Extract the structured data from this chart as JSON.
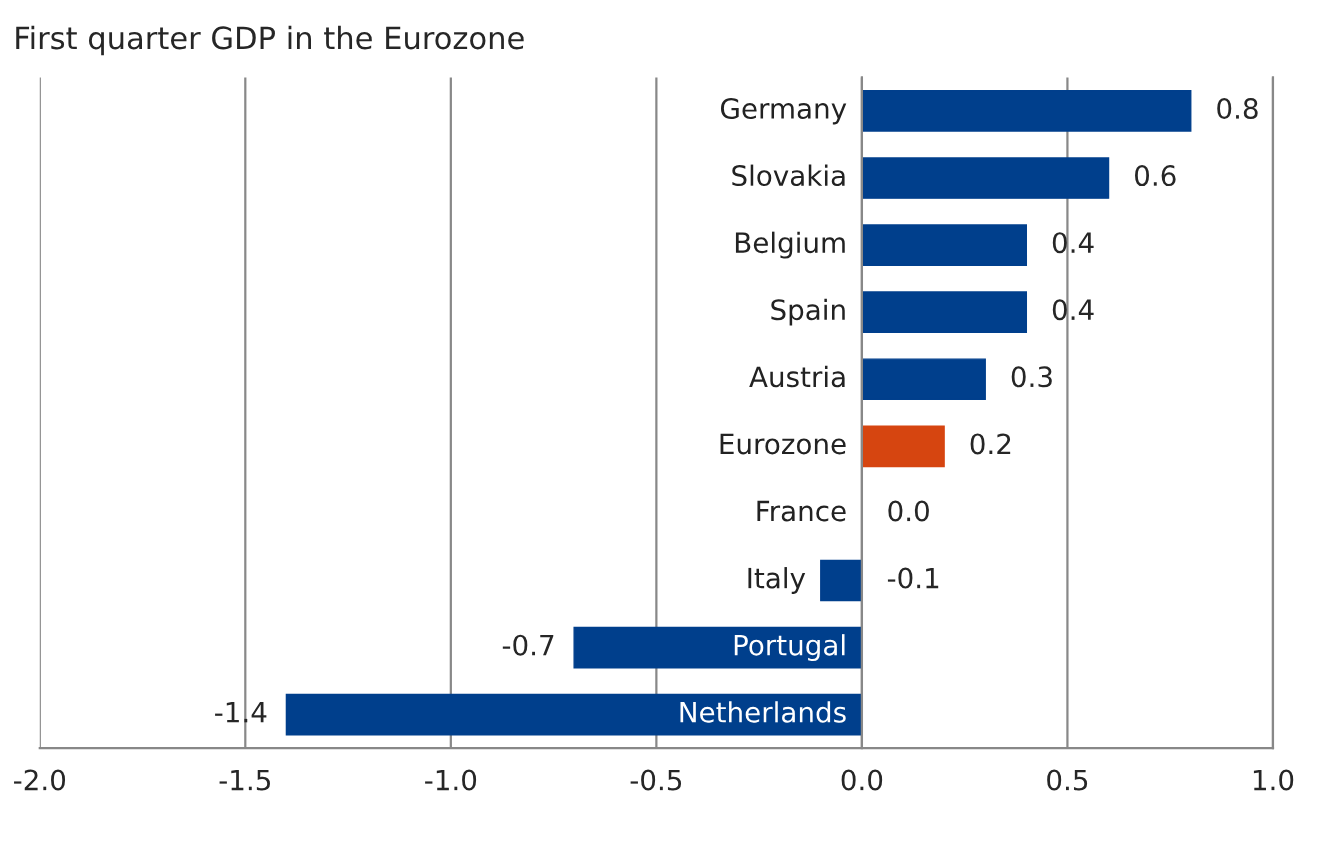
{
  "chart_data": {
    "type": "bar",
    "orientation": "horizontal",
    "title": "First quarter GDP in the Eurozone",
    "categories": [
      "Germany",
      "Slovakia",
      "Belgium",
      "Spain",
      "Austria",
      "Eurozone",
      "France",
      "Italy",
      "Portugal",
      "Netherlands"
    ],
    "values": [
      0.8,
      0.6,
      0.4,
      0.4,
      0.3,
      0.2,
      0.0,
      -0.1,
      -0.7,
      -1.4
    ],
    "value_labels": [
      "0.8",
      "0.6",
      "0.4",
      "0.4",
      "0.3",
      "0.2",
      "0.0",
      "-0.1",
      "-0.7",
      "-1.4"
    ],
    "colors": [
      "#003f8c",
      "#003f8c",
      "#003f8c",
      "#003f8c",
      "#003f8c",
      "#d64510",
      "#003f8c",
      "#003f8c",
      "#003f8c",
      "#003f8c"
    ],
    "xlim": [
      -2,
      1
    ],
    "xticks": [
      {
        "value": -2,
        "label": "-2.0"
      },
      {
        "value": -1.5,
        "label": "-1.5"
      },
      {
        "value": -1,
        "label": "-1.0"
      },
      {
        "value": -0.5,
        "label": "-0.5"
      },
      {
        "value": 0,
        "label": "0.0"
      },
      {
        "value": 0.5,
        "label": "0.5"
      },
      {
        "value": 1,
        "label": "1.0"
      }
    ],
    "grid": "x",
    "legend": false
  }
}
